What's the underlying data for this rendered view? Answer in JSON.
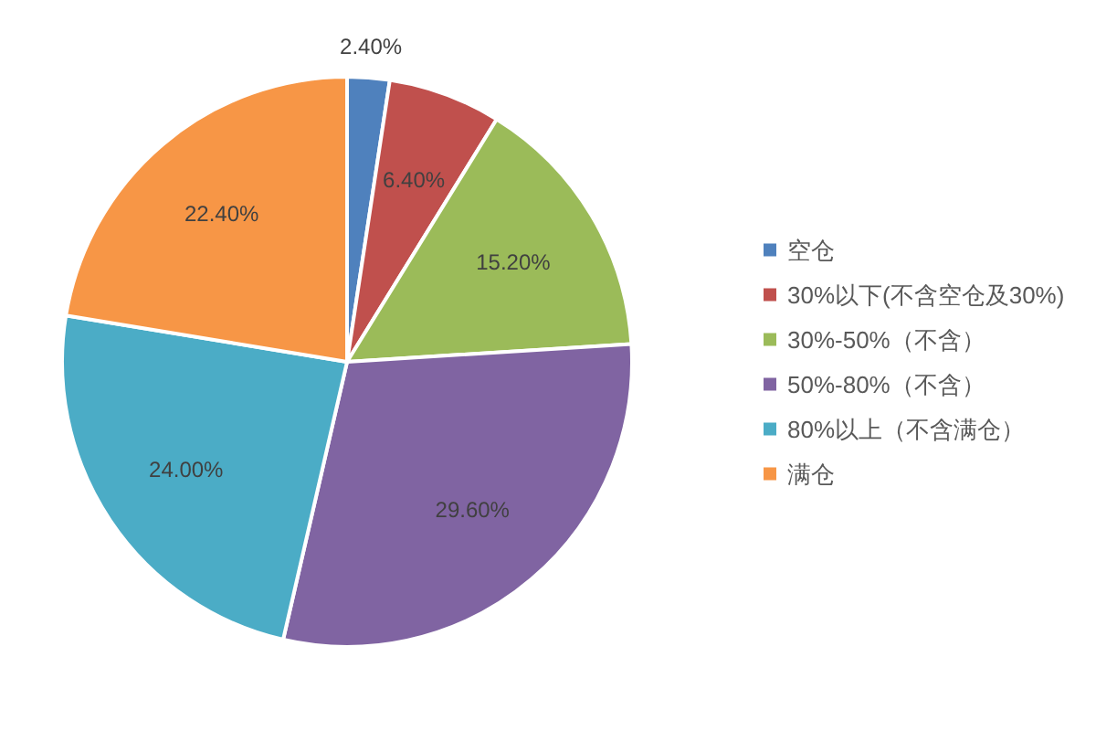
{
  "chart_data": {
    "type": "pie",
    "categories": [
      "空仓",
      "30%以下(不含空仓及30%)",
      "30%-50%（不含）",
      "50%-80%（不含）",
      "80%以上（不含满仓）",
      "满仓"
    ],
    "values": [
      2.4,
      6.4,
      15.2,
      29.6,
      24.0,
      22.4
    ],
    "colors": [
      "#4f81bd",
      "#c0504d",
      "#9bbb59",
      "#8064a2",
      "#4bacc6",
      "#f79646"
    ],
    "value_labels": [
      "2.40%",
      "6.40%",
      "15.20%",
      "29.60%",
      "24.00%",
      "22.40%"
    ],
    "legend": "right"
  }
}
